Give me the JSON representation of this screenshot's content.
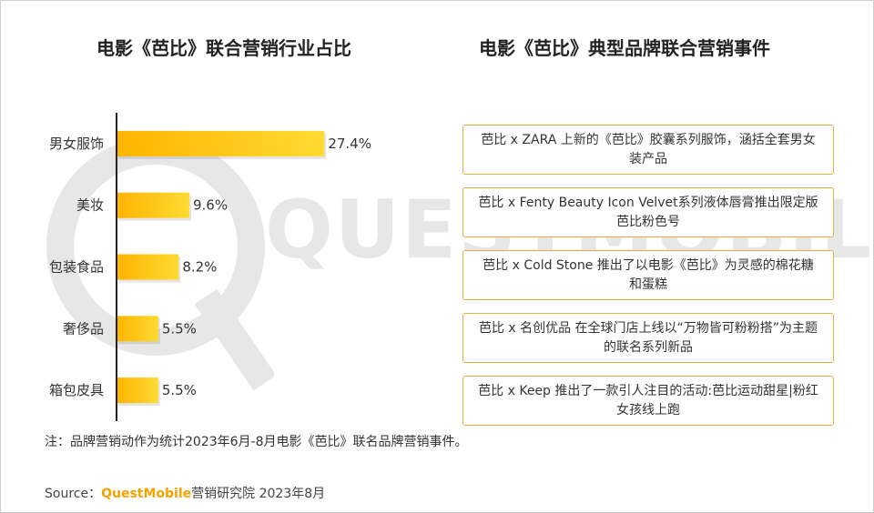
{
  "colors": {
    "bar_start": "#ffb400",
    "bar_end": "#ffda33",
    "event_border": "#e2b23f",
    "brand": "#f5a300",
    "axis": "#222222"
  },
  "left_title": "电影《芭比》联合营销行业占比",
  "right_title": "电影《芭比》典型品牌联合营销事件",
  "chart_data": {
    "type": "bar",
    "orientation": "horizontal",
    "title": "电影《芭比》联合营销行业占比",
    "categories": [
      "男女服饰",
      "美妆",
      "包装食品",
      "奢侈品",
      "箱包皮具"
    ],
    "values": [
      27.4,
      9.6,
      8.2,
      5.5,
      5.5
    ],
    "value_labels": [
      "27.4%",
      "9.6%",
      "8.2%",
      "5.5%",
      "5.5%"
    ],
    "xlim": [
      0,
      30
    ],
    "grid": false,
    "legend": "none"
  },
  "events": [
    "芭比 x ZARA 上新的《芭比》胶囊系列服饰，涵括全套男女装产品",
    "芭比 x Fenty Beauty Icon Velvet系列液体唇膏推出限定版芭比粉色号",
    "芭比 x Cold Stone 推出了以电影《芭比》为灵感的棉花糖和蛋糕",
    "芭比 x 名创优品 在全球门店上线以“万物皆可粉粉搭”为主题的联名系列新品",
    "芭比 x Keep 推出了一款引人注目的活动:芭比运动甜星|粉红女孩线上跑"
  ],
  "note": "注：品牌营销动作为统计2023年6月-8月电影《芭比》联名品牌营销事件。",
  "source": {
    "prefix": "Source：",
    "brand": "QuestMobile",
    "suffix": "营销研究院 2023年8月"
  },
  "watermark": {
    "text": "QUESTMOBILE"
  }
}
